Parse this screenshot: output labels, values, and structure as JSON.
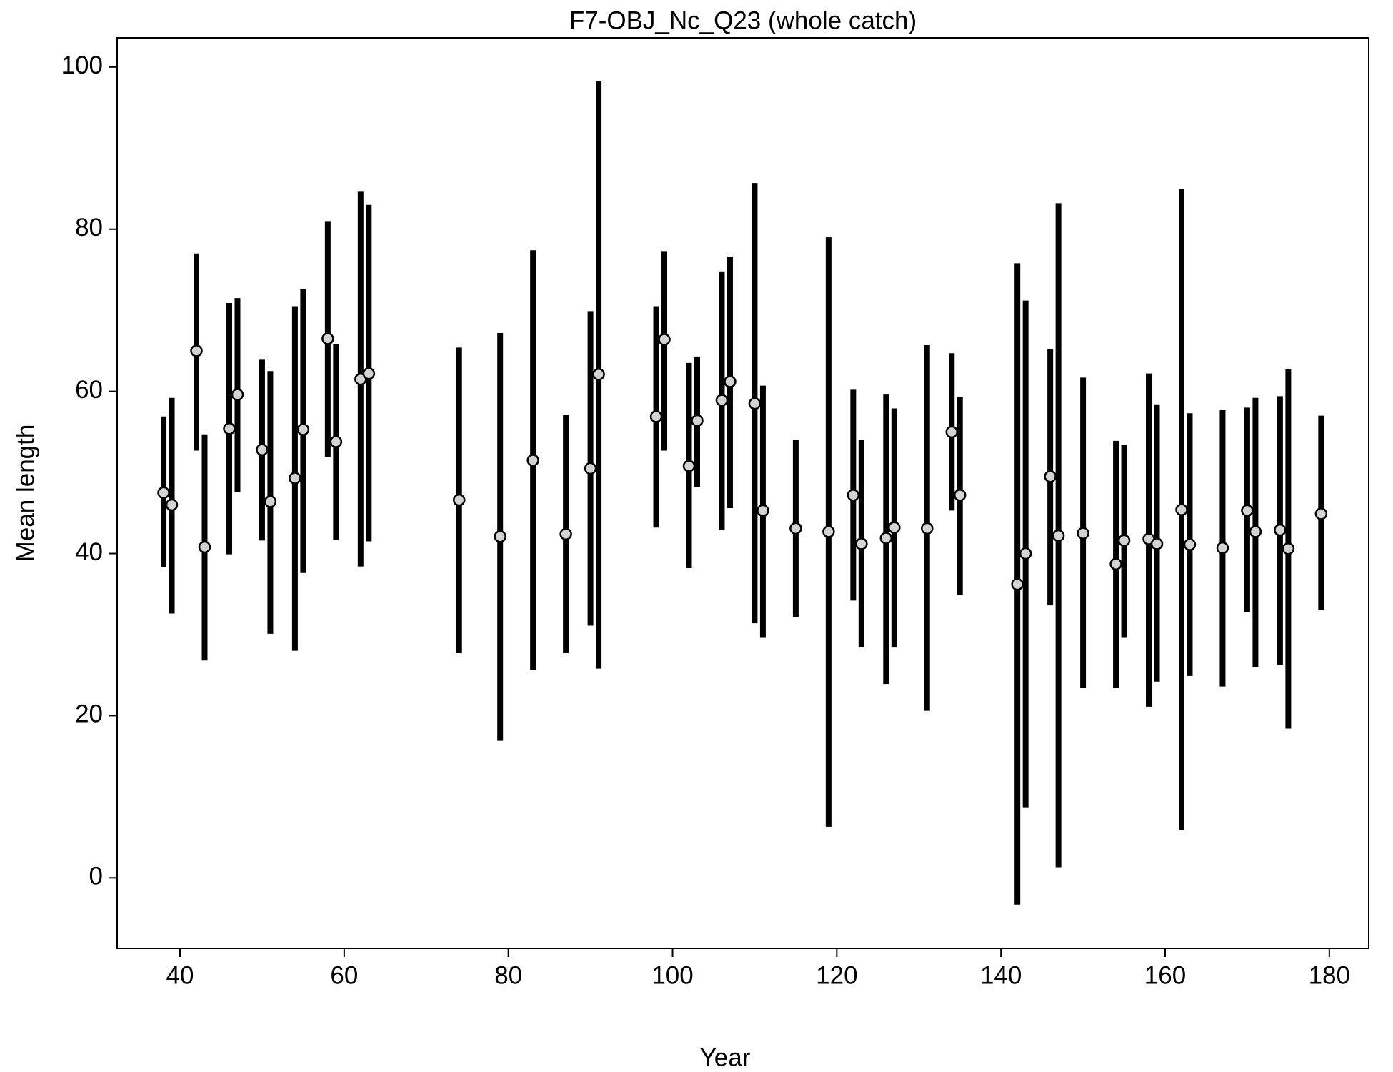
{
  "chart_data": {
    "type": "errorbar",
    "title": "F7-OBJ_Nc_Q23 (whole catch)",
    "x_label": "Year",
    "y_label": "Mean length",
    "x": [
      38,
      39,
      42,
      43,
      46,
      47,
      50,
      51,
      54,
      55,
      58,
      59,
      62,
      63,
      74,
      79,
      83,
      87,
      90,
      91,
      98,
      99,
      102,
      103,
      106,
      107,
      110,
      111,
      115,
      119,
      122,
      123,
      126,
      127,
      131,
      134,
      135,
      142,
      143,
      146,
      147,
      150,
      154,
      155,
      158,
      159,
      162,
      163,
      167,
      170,
      171,
      174,
      175,
      179
    ],
    "values": [
      47.5,
      46,
      65,
      40.8,
      55.4,
      59.6,
      52.8,
      46.4,
      49.3,
      55.3,
      66.5,
      53.8,
      61.5,
      62.2,
      46.6,
      42.1,
      51.5,
      42.4,
      50.5,
      62.1,
      56.9,
      66.4,
      50.8,
      56.4,
      58.9,
      61.2,
      58.5,
      45.3,
      43.1,
      42.7,
      47.2,
      41.2,
      41.9,
      43.2,
      43.1,
      55,
      47.2,
      36.2,
      40,
      49.5,
      42.2,
      42.5,
      38.7,
      41.6,
      41.8,
      41.2,
      45.4,
      41.1,
      40.7,
      45.3,
      42.7,
      42.9,
      40.6,
      44.9
    ],
    "lower": [
      38.3,
      32.6,
      52.7,
      26.8,
      39.9,
      47.6,
      41.6,
      30.1,
      28,
      37.6,
      51.9,
      41.7,
      38.4,
      41.5,
      27.7,
      16.9,
      25.6,
      27.7,
      31.1,
      25.8,
      43.2,
      52.7,
      38.2,
      48.2,
      42.9,
      45.6,
      31.4,
      29.6,
      32.2,
      6.3,
      34.2,
      28.5,
      23.9,
      28.4,
      20.6,
      45.3,
      34.9,
      -3.3,
      8.7,
      33.6,
      1.3,
      23.4,
      23.4,
      29.6,
      21.1,
      24.2,
      5.9,
      24.9,
      23.6,
      32.8,
      26,
      26.3,
      18.4,
      33
    ],
    "upper": [
      56.9,
      59.2,
      77,
      54.7,
      70.9,
      71.5,
      63.9,
      62.5,
      70.5,
      72.6,
      81,
      65.8,
      84.7,
      83,
      65.4,
      67.2,
      77.4,
      57.1,
      69.9,
      98.3,
      70.5,
      77.3,
      63.5,
      64.3,
      74.8,
      76.6,
      85.7,
      60.7,
      54,
      79,
      60.2,
      54,
      59.6,
      57.9,
      65.7,
      64.7,
      59.3,
      75.8,
      71.2,
      65.2,
      83.2,
      61.7,
      53.9,
      53.4,
      62.2,
      58.4,
      85,
      57.3,
      57.7,
      58,
      59.2,
      59.4,
      62.7,
      57
    ],
    "bar_color": "#000000",
    "point_color": "#d3d3d3",
    "xlim": [
      32.34,
      184.8
    ],
    "ylim": [
      -8.7,
      103.6
    ],
    "xticks": [
      40,
      60,
      80,
      100,
      120,
      140,
      160,
      180
    ],
    "yticks": [
      0,
      20,
      40,
      60,
      80,
      100
    ]
  }
}
